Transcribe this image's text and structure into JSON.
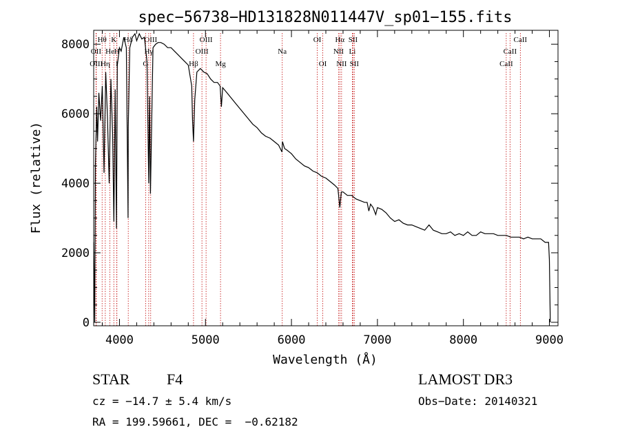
{
  "chart_data": {
    "type": "line",
    "title": "spec−56738−HD131828N011447V_sp01−155.fits",
    "xlabel": "Wavelength (Å)",
    "ylabel": "Flux (relative)",
    "xlim": [
      3700,
      9100
    ],
    "ylim": [
      -100,
      8400
    ],
    "x_ticks": [
      "4000",
      "5000",
      "6000",
      "7000",
      "8000",
      "9000"
    ],
    "y_ticks": [
      "0",
      "2000",
      "4000",
      "6000",
      "8000"
    ],
    "grid": false,
    "series": [
      {
        "x": [
          3700,
          3712,
          3720,
          3735,
          3745,
          3760,
          3780,
          3800,
          3820,
          3840,
          3860,
          3880,
          3900,
          3920,
          3935,
          3950,
          3965,
          3975,
          3990,
          4000,
          4020,
          4050,
          4080,
          4100,
          4102,
          4120,
          4150,
          4180,
          4200,
          4230,
          4260,
          4290,
          4320,
          4340,
          4350,
          4360,
          4390,
          4420,
          4450,
          4480,
          4520,
          4560,
          4600,
          4640,
          4680,
          4720,
          4760,
          4800,
          4840,
          4850,
          4861,
          4875,
          4900,
          4940,
          4980,
          5020,
          5060,
          5100,
          5140,
          5170,
          5185,
          5200,
          5250,
          5300,
          5350,
          5400,
          5450,
          5500,
          5550,
          5600,
          5650,
          5700,
          5750,
          5800,
          5850,
          5890,
          5895,
          5920,
          5950,
          6000,
          6050,
          6100,
          6150,
          6200,
          6250,
          6300,
          6350,
          6400,
          6450,
          6500,
          6540,
          6563,
          6580,
          6600,
          6650,
          6700,
          6750,
          6800,
          6850,
          6880,
          6900,
          6920,
          6950,
          6980,
          7000,
          7050,
          7100,
          7150,
          7200,
          7250,
          7300,
          7350,
          7400,
          7450,
          7500,
          7550,
          7600,
          7650,
          7700,
          7750,
          7800,
          7850,
          7900,
          7950,
          8000,
          8050,
          8100,
          8150,
          8200,
          8250,
          8300,
          8350,
          8400,
          8450,
          8500,
          8550,
          8600,
          8650,
          8700,
          8750,
          8800,
          8850,
          8900,
          8950,
          8990,
          9000,
          9010
        ],
        "y": [
          2300,
          0,
          4500,
          6200,
          5200,
          6600,
          5800,
          6800,
          4300,
          7200,
          5900,
          4000,
          7000,
          5400,
          2900,
          6700,
          2700,
          7400,
          7700,
          7900,
          7800,
          8200,
          7900,
          3000,
          5600,
          7900,
          8200,
          8300,
          8100,
          8300,
          8150,
          8200,
          7500,
          4000,
          6500,
          3700,
          7900,
          8000,
          8050,
          8050,
          8000,
          7900,
          7900,
          7800,
          7700,
          7600,
          7500,
          7400,
          6800,
          5800,
          5200,
          6400,
          7200,
          7300,
          7200,
          7150,
          7000,
          6900,
          6900,
          6800,
          6200,
          6750,
          6600,
          6450,
          6300,
          6150,
          6000,
          5850,
          5700,
          5600,
          5450,
          5350,
          5300,
          5200,
          5100,
          4900,
          5200,
          5000,
          4950,
          4850,
          4700,
          4600,
          4500,
          4450,
          4350,
          4300,
          4200,
          4150,
          4050,
          3950,
          3850,
          3300,
          3750,
          3750,
          3650,
          3650,
          3550,
          3500,
          3450,
          3450,
          3200,
          3400,
          3300,
          3100,
          3300,
          3250,
          3150,
          3000,
          2900,
          2950,
          2850,
          2800,
          2800,
          2750,
          2700,
          2650,
          2800,
          2650,
          2600,
          2550,
          2550,
          2600,
          2500,
          2550,
          2500,
          2600,
          2500,
          2500,
          2600,
          2550,
          2550,
          2550,
          2500,
          2500,
          2500,
          2450,
          2450,
          2450,
          2400,
          2450,
          2400,
          2400,
          2400,
          2300,
          2300,
          1800,
          0
        ]
      }
    ],
    "lines": [
      {
        "label": "Hθ",
        "x": 3798,
        "row": 0
      },
      {
        "label": "OII",
        "x": 3727,
        "row": 1
      },
      {
        "label": "OIII",
        "x": 3730,
        "row": 2
      },
      {
        "label": "K",
        "x": 3934,
        "row": 0
      },
      {
        "label": "H",
        "x": 3969,
        "row": 1
      },
      {
        "label": "He",
        "x": 3889,
        "row": 1
      },
      {
        "label": "Hη",
        "x": 3835,
        "row": 2
      },
      {
        "label": "I",
        "x": 3970,
        "row": 2
      },
      {
        "label": "Hδ",
        "x": 4102,
        "row": 0
      },
      {
        "label": "OIII",
        "x": 4363,
        "row": 0
      },
      {
        "label": "Hγ",
        "x": 4340,
        "row": 1
      },
      {
        "label": "G",
        "x": 4304,
        "row": 2
      },
      {
        "label": "OIII",
        "x": 5007,
        "row": 0
      },
      {
        "label": "OIII",
        "x": 4959,
        "row": 1
      },
      {
        "label": "Hβ",
        "x": 4861,
        "row": 2
      },
      {
        "label": "Mg",
        "x": 5175,
        "row": 2
      },
      {
        "label": "Na",
        "x": 5893,
        "row": 1
      },
      {
        "label": "OI",
        "x": 6300,
        "row": 0
      },
      {
        "label": "OI",
        "x": 6364,
        "row": 2
      },
      {
        "label": "Hα",
        "x": 6563,
        "row": 0
      },
      {
        "label": "SII",
        "x": 6716,
        "row": 0
      },
      {
        "label": "NII",
        "x": 6548,
        "row": 1
      },
      {
        "label": "Li",
        "x": 6708,
        "row": 1
      },
      {
        "label": "NII",
        "x": 6583,
        "row": 2
      },
      {
        "label": "SII",
        "x": 6731,
        "row": 2
      },
      {
        "label": "CaII",
        "x": 8662,
        "row": 0
      },
      {
        "label": "CaII",
        "x": 8542,
        "row": 1
      },
      {
        "label": "CaII",
        "x": 8498,
        "row": 2
      }
    ]
  },
  "info": {
    "class_label": "STAR",
    "subclass": "F4",
    "survey": "LAMOST DR3",
    "cz": "cz = −14.7 ± 5.4 km/s",
    "obs_date": "Obs−Date: 20140321",
    "coords": "RA = 199.59661, DEC =  −0.62182"
  }
}
